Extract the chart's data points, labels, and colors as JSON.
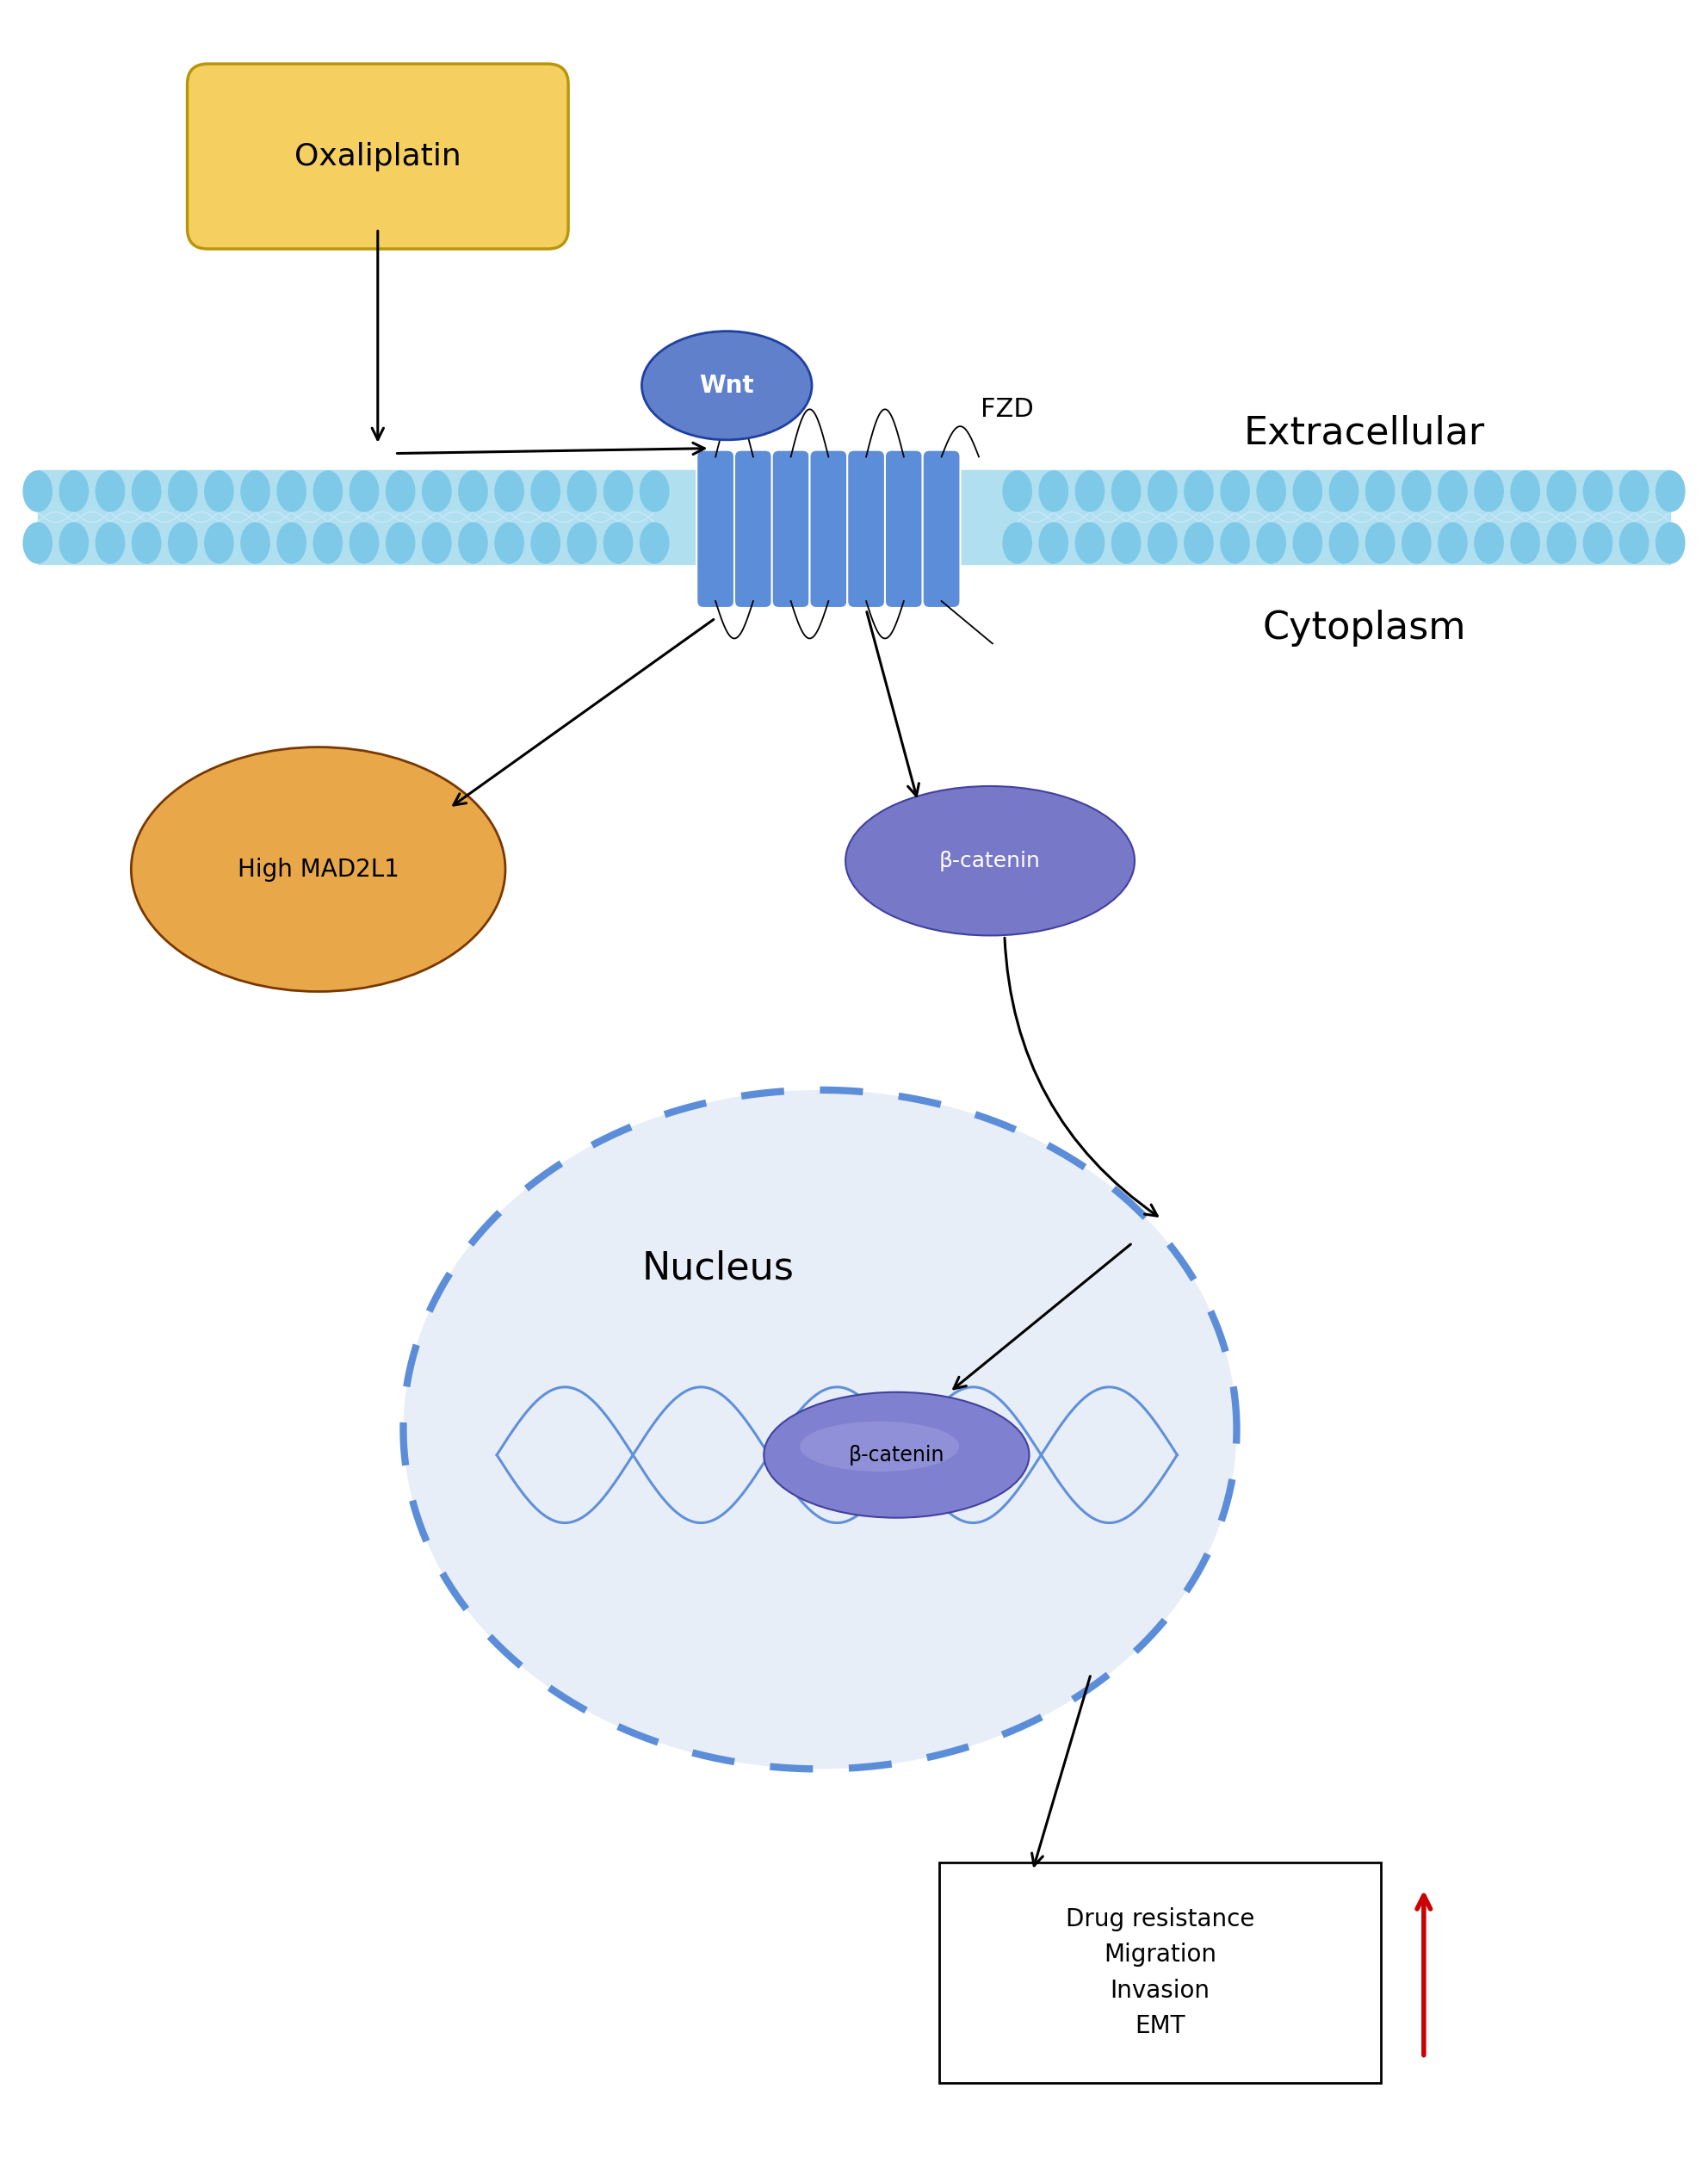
{
  "fig_width": 19.84,
  "fig_height": 25.12,
  "bg_color": "#ffffff",
  "receptor_color": "#5b8dd9",
  "receptor_color_dark": "#4070c0",
  "wnt_color": "#6080cc",
  "wnt_border": "#2040a0",
  "beta_catenin_color_cytoplasm": "#7878c8",
  "beta_catenin_color_nucleus": "#7878c8",
  "mad2l1_color": "#e8a84a",
  "mad2l1_border": "#7a3800",
  "oxaliplatin_color": "#f5d060",
  "oxaliplatin_border": "#b8960a",
  "nucleus_color": "#e8eef8",
  "nucleus_border_color": "#5b8dd9",
  "dna_color": "#6090d8",
  "mem_outer_color": "#7ec8e8",
  "mem_inner_color": "#b0dff0",
  "mem_tail_color": "#c8e8f8",
  "arrow_color": "#000000",
  "red_arrow_color": "#cc0000",
  "extracellular_label": "Extracellular",
  "cytoplasm_label": "Cytoplasm",
  "nucleus_label": "Nucleus",
  "wnt_label": "Wnt",
  "fzd_label": "FZD",
  "oxaliplatin_label": "Oxaliplatin",
  "mad2l1_label": "High MAD2L1",
  "beta_catenin_label": "β-catenin",
  "output_label": "Drug resistance\nMigration\nInvasion\nEMT"
}
